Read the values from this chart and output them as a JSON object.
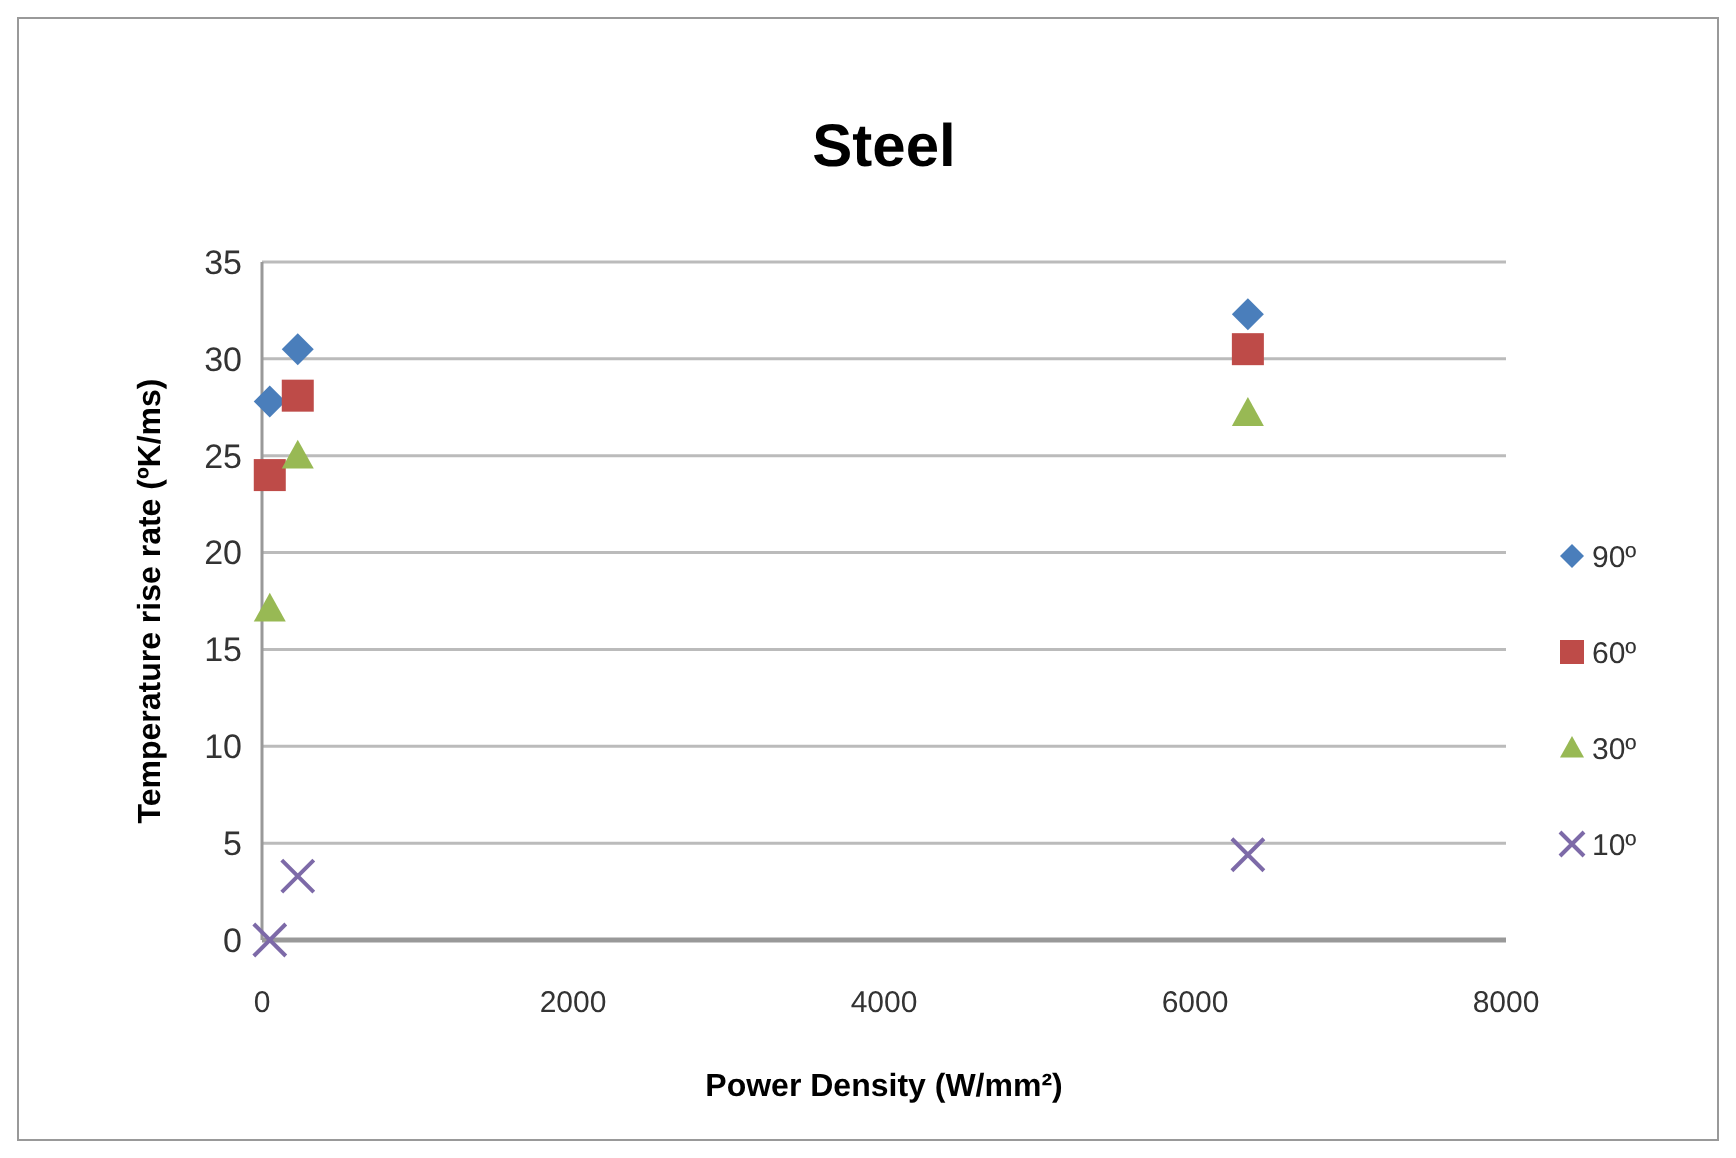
{
  "chart_data": {
    "type": "scatter",
    "title": "Steel",
    "xlabel": "Power Density (W/mm²)",
    "ylabel": "Temperature rise rate (ºK/ms)",
    "xlim": [
      0,
      8000
    ],
    "xticks": [
      0,
      2000,
      4000,
      6000,
      8000
    ],
    "ylim": [
      0,
      35
    ],
    "yticks": [
      0,
      5,
      10,
      15,
      20,
      25,
      30,
      35
    ],
    "grid": "y",
    "legend": "right",
    "series": [
      {
        "name": "90º",
        "color": "#4a7ebb",
        "marker": "diamond",
        "x": [
          50,
          230,
          6340
        ],
        "values": [
          27.8,
          30.5,
          32.3
        ]
      },
      {
        "name": "60º",
        "color": "#be4b48",
        "marker": "square",
        "x": [
          50,
          230,
          6340
        ],
        "values": [
          24.0,
          28.1,
          30.5
        ]
      },
      {
        "name": "30º",
        "color": "#98b954",
        "marker": "triangle",
        "x": [
          50,
          230,
          6340
        ],
        "values": [
          17.1,
          25.0,
          27.2
        ]
      },
      {
        "name": "10º",
        "color": "#7d6aa8",
        "marker": "cross",
        "x": [
          50,
          230,
          6340
        ],
        "values": [
          0,
          3.3,
          4.4
        ]
      }
    ]
  }
}
